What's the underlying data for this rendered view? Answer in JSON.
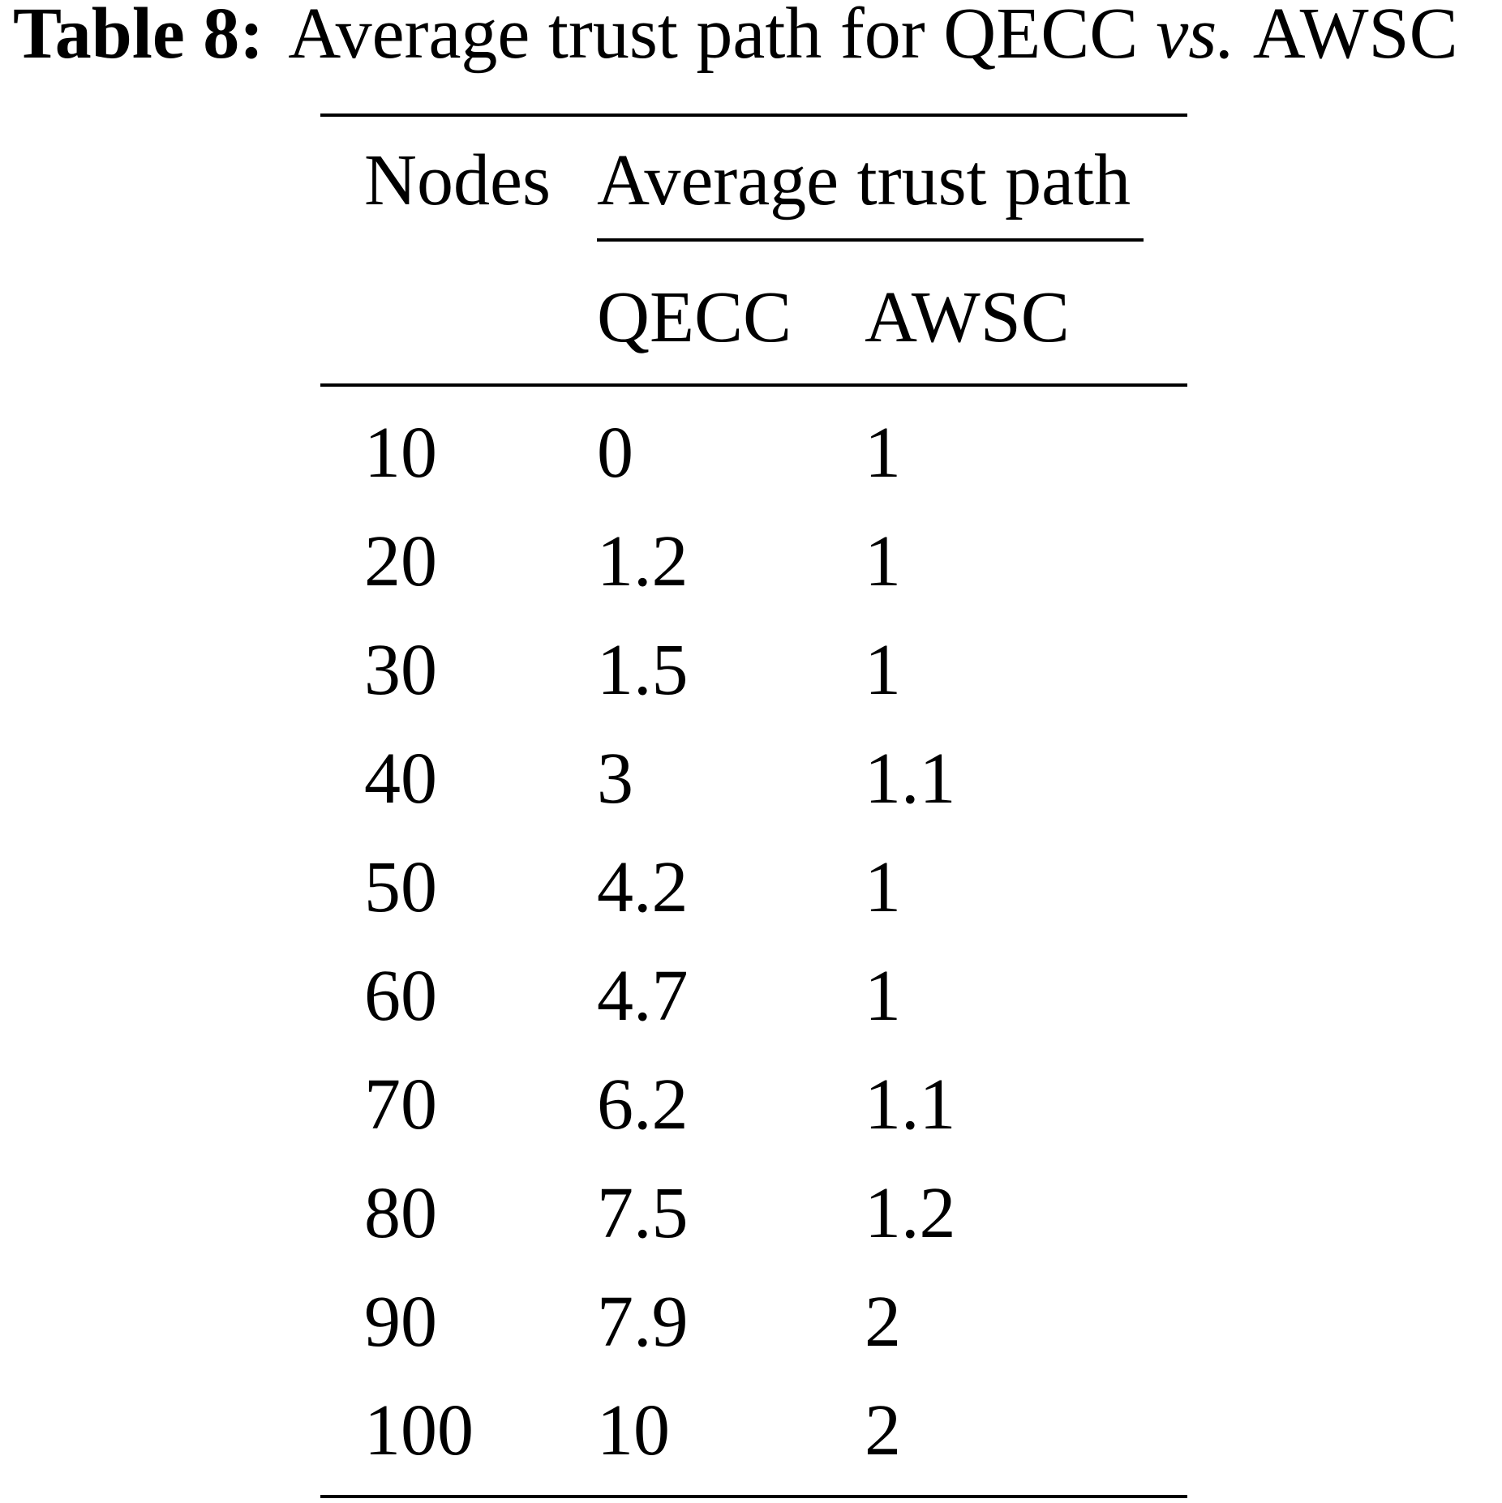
{
  "caption": {
    "label": "Table 8:",
    "text": "Average trust path for QECC",
    "emphasis": "vs.",
    "text_after": "AWSC"
  },
  "table": {
    "header": {
      "nodes": "Nodes",
      "group": "Average trust path",
      "columns": [
        "QECC",
        "AWSC"
      ]
    },
    "rows": [
      [
        10,
        0,
        1
      ],
      [
        20,
        1.2,
        1
      ],
      [
        30,
        1.5,
        1
      ],
      [
        40,
        3,
        1.1
      ],
      [
        50,
        4.2,
        1
      ],
      [
        60,
        4.7,
        1
      ],
      [
        70,
        6.2,
        1.1
      ],
      [
        80,
        7.5,
        1.2
      ],
      [
        90,
        7.9,
        2
      ],
      [
        100,
        10,
        2
      ]
    ]
  }
}
